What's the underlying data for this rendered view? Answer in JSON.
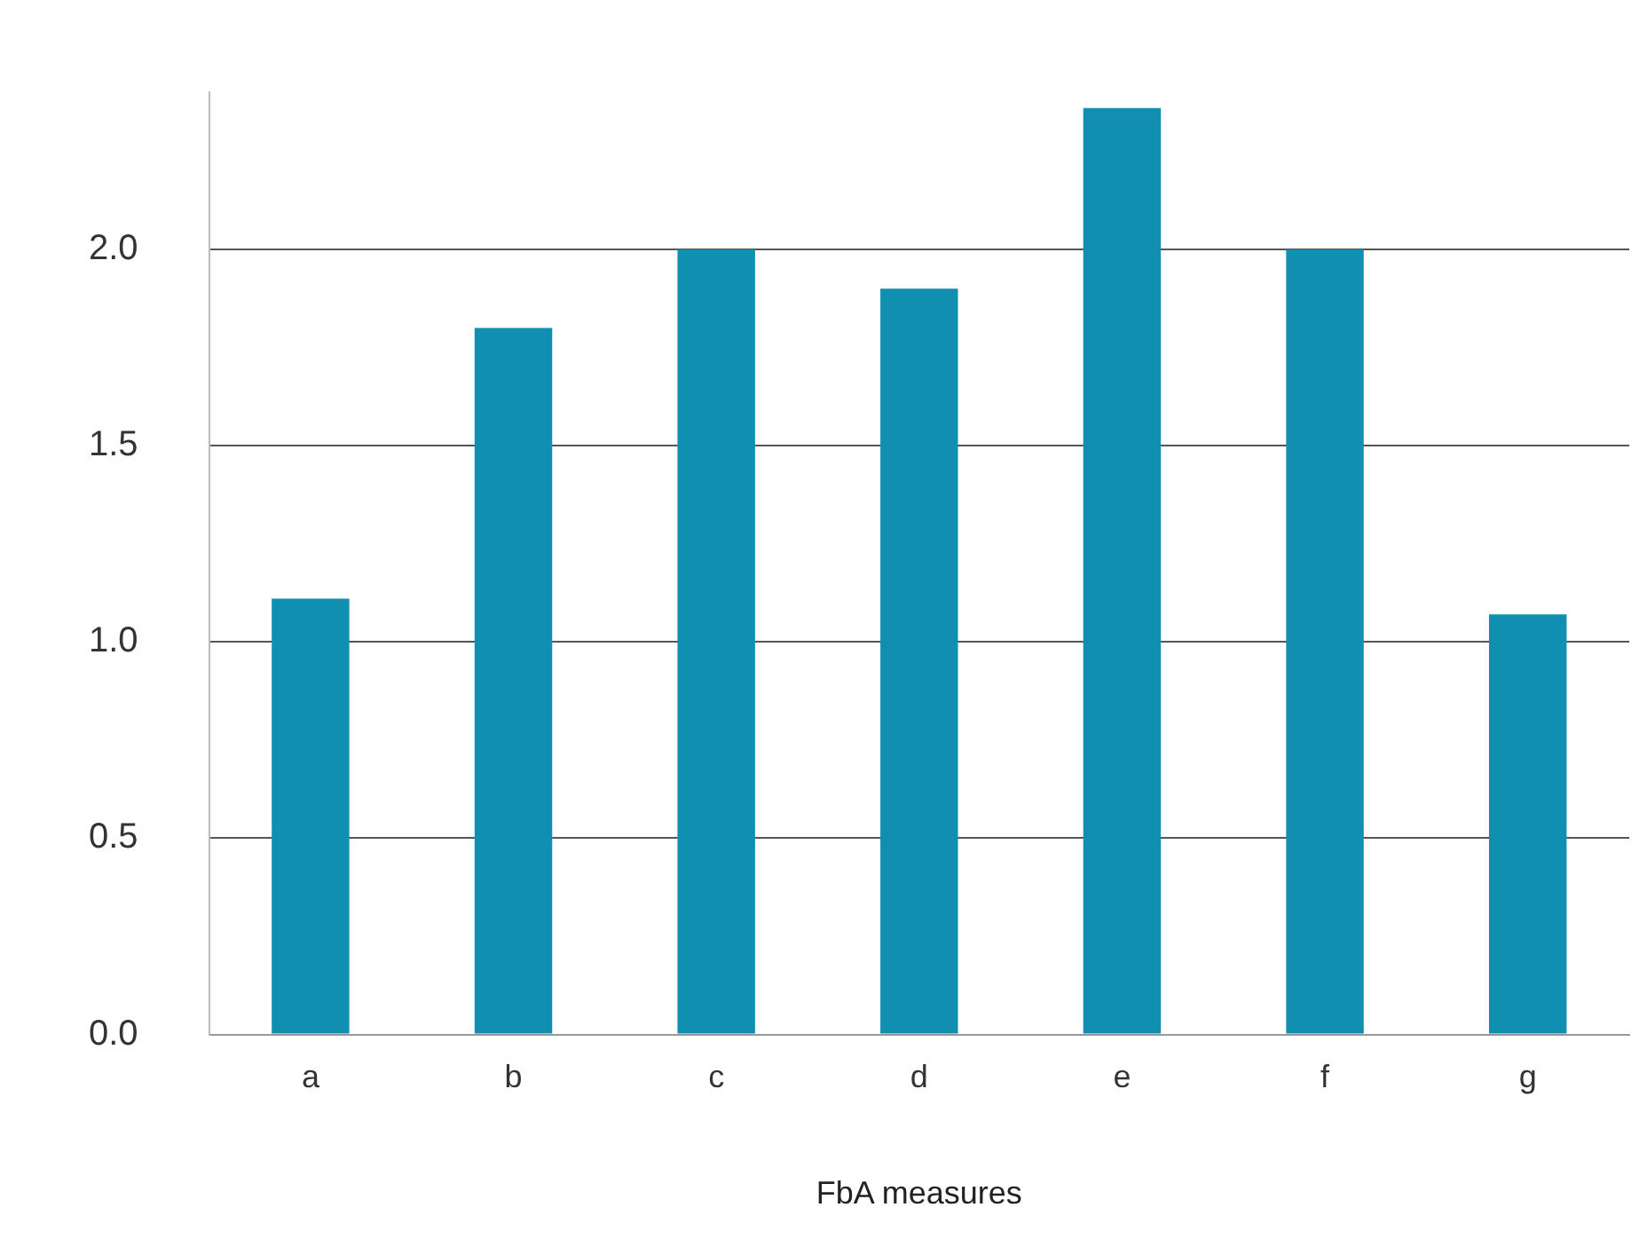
{
  "chart_data": {
    "type": "bar",
    "xlabel": "FbA measures",
    "categories": [
      "a",
      "b",
      "c",
      "d",
      "e",
      "f",
      "g"
    ],
    "values": [
      1.11,
      1.8,
      2.0,
      1.9,
      2.36,
      2.0,
      1.07
    ],
    "color": "#118fb0",
    "ylim": [
      0,
      2.4
    ],
    "yticks": [
      {
        "value": 0,
        "label": "0.0"
      },
      0.5,
      {
        "value": 1,
        "label": "1.0"
      },
      1.5,
      {
        "value": 2,
        "label": "2.0"
      }
    ],
    "grid": "y",
    "legend": false
  }
}
